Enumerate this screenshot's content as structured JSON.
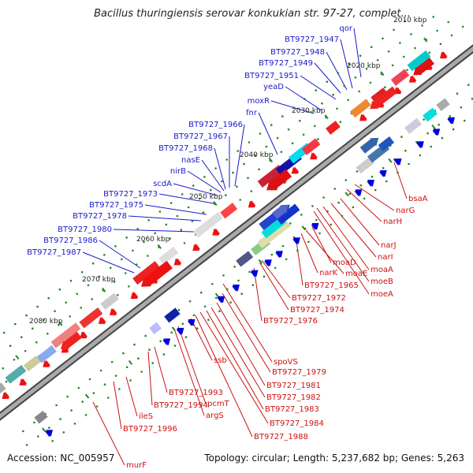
{
  "title": "Bacillus thuringiensis serovar konkukian str. 97-27, complet...",
  "footer": {
    "accession": "Accession: NC_005957",
    "topology": "Topology: circular; Length: 5,237,682 bp; Genes: 5,263"
  },
  "colors": {
    "forward_label": "#1a1acc",
    "reverse_label": "#cc1111",
    "forward_gene": "#0000dd",
    "reverse_gene": "#ee1111",
    "cds_forward": "#2233aa",
    "cds_reverse": "#eeaaaa",
    "tick_green": "#228822",
    "backbone": "#777777"
  },
  "kbp_ticks": [
    "2010 kbp",
    "2020 kbp",
    "2030 kbp",
    "2040 kbp",
    "2050 kbp",
    "2060 kbp",
    "2070 kbp",
    "2080 kbp"
  ],
  "forward_genes": [
    "qor",
    "BT9727_1947",
    "BT9727_1948",
    "BT9727_1949",
    "BT9727_1951",
    "yeaD",
    "moxR",
    "fnr",
    "BT9727_1966",
    "BT9727_1967",
    "BT9727_1968",
    "nasE",
    "nirB",
    "scdA",
    "BT9727_1973",
    "BT9727_1975",
    "BT9727_1978",
    "BT9727_1980",
    "BT9727_1986",
    "BT9727_1987"
  ],
  "reverse_genes": [
    "bsaA",
    "narG",
    "narH",
    "narJ",
    "narI",
    "moaA",
    "moeB",
    "moeA",
    "moaD",
    "moaE",
    "narK",
    "BT9727_1965",
    "BT9727_1972",
    "BT9727_1974",
    "BT9727_1976",
    "spoVS",
    "BT9727_1979",
    "BT9727_1981",
    "BT9727_1982",
    "BT9727_1983",
    "BT9727_1984",
    "BT9727_1988",
    "ssb",
    "pcmT",
    "argS",
    "BT9727_1993",
    "BT9727_1994",
    "ileS",
    "BT9727_1996",
    "murF"
  ]
}
